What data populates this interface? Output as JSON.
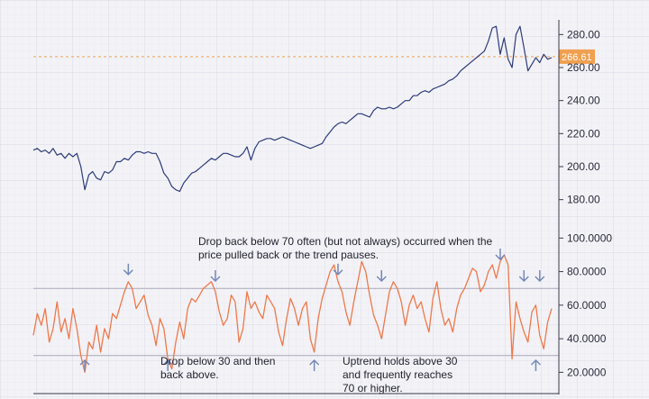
{
  "chart_data": [
    {
      "type": "line",
      "panel": "price",
      "title": "",
      "xlabel": "",
      "ylabel": "",
      "ylim": [
        170,
        290
      ],
      "yticks": [
        {
          "value": 180,
          "label": "180.00"
        },
        {
          "value": 200,
          "label": "200.00"
        },
        {
          "value": 220,
          "label": "220.00"
        },
        {
          "value": 240,
          "label": "240.00"
        },
        {
          "value": 260,
          "label": "260.00"
        },
        {
          "value": 280,
          "label": "280.00"
        }
      ],
      "grid": true,
      "series": [
        {
          "color": "#2c3a7a",
          "values": [
            210,
            211,
            209,
            210,
            208,
            211,
            207,
            208,
            205,
            208,
            206,
            208,
            200,
            186,
            195,
            197,
            193,
            192,
            197,
            196,
            198,
            203,
            203,
            205,
            204,
            207,
            209,
            209,
            208,
            209,
            208,
            208,
            203,
            196,
            193,
            188,
            186,
            185,
            190,
            193,
            196,
            197,
            199,
            201,
            203,
            205,
            204,
            206,
            208,
            208,
            207,
            206,
            206,
            208,
            212,
            204,
            211,
            215,
            216,
            217,
            217,
            216,
            217,
            218,
            217,
            216,
            215,
            214,
            213,
            212,
            211,
            212,
            213,
            214,
            218,
            221,
            224,
            226,
            227,
            226,
            228,
            230,
            232,
            232,
            231,
            230,
            234,
            236,
            235,
            235,
            236,
            235,
            236,
            238,
            240,
            240,
            243,
            243,
            245,
            246,
            245,
            247,
            248,
            249,
            250,
            252,
            253,
            255,
            258,
            260,
            262,
            264,
            266,
            268,
            270,
            276,
            284,
            285,
            268,
            278,
            265,
            260,
            280,
            285,
            272,
            258,
            262,
            266,
            263,
            268,
            265,
            266
          ]
        }
      ],
      "current_price": {
        "value": 266.61,
        "label": "266.61",
        "color": "#f0a050"
      }
    },
    {
      "type": "line",
      "panel": "rsi",
      "title": "",
      "xlabel": "",
      "ylabel": "",
      "ylim": [
        10,
        105
      ],
      "yticks": [
        {
          "value": 20,
          "label": "20.0000"
        },
        {
          "value": 40,
          "label": "40.0000"
        },
        {
          "value": 60,
          "label": "60.0000"
        },
        {
          "value": 80,
          "label": "80.0000"
        },
        {
          "value": 100,
          "label": "100.0000"
        }
      ],
      "levels": [
        70,
        30
      ],
      "grid": true,
      "series": [
        {
          "color": "#f07848",
          "values": [
            42,
            55,
            48,
            58,
            38,
            46,
            62,
            44,
            52,
            40,
            58,
            46,
            30,
            20,
            38,
            34,
            48,
            32,
            46,
            40,
            55,
            52,
            60,
            68,
            74,
            70,
            58,
            62,
            66,
            54,
            48,
            36,
            52,
            46,
            28,
            22,
            38,
            50,
            40,
            58,
            64,
            62,
            66,
            70,
            72,
            74,
            68,
            56,
            48,
            52,
            66,
            62,
            38,
            46,
            68,
            58,
            62,
            56,
            52,
            66,
            62,
            58,
            44,
            36,
            52,
            64,
            58,
            48,
            58,
            62,
            40,
            32,
            52,
            64,
            72,
            80,
            84,
            74,
            68,
            56,
            48,
            62,
            74,
            86,
            80,
            66,
            54,
            48,
            40,
            54,
            68,
            74,
            70,
            62,
            48,
            60,
            66,
            58,
            62,
            52,
            44,
            64,
            74,
            58,
            48,
            52,
            44,
            58,
            66,
            70,
            76,
            82,
            80,
            68,
            72,
            80,
            84,
            76,
            86,
            90,
            84,
            28,
            62,
            52,
            44,
            38,
            56,
            60,
            42,
            34,
            50,
            58
          ]
        }
      ],
      "annotations": [
        {
          "text_lines": [
            "Drop back below 70 often (but not always) occurred when the",
            "price pulled back or the trend pauses."
          ]
        },
        {
          "text_lines": [
            "Drop below 30 and then",
            "back above."
          ]
        },
        {
          "text_lines": [
            "Uptrend holds above 30",
            "and frequently reaches",
            "70 or higher."
          ]
        }
      ],
      "arrows_down_at_index": [
        24,
        46,
        77,
        88,
        118,
        124,
        128
      ],
      "arrows_up_at_index": [
        13,
        34,
        71,
        127
      ]
    }
  ]
}
